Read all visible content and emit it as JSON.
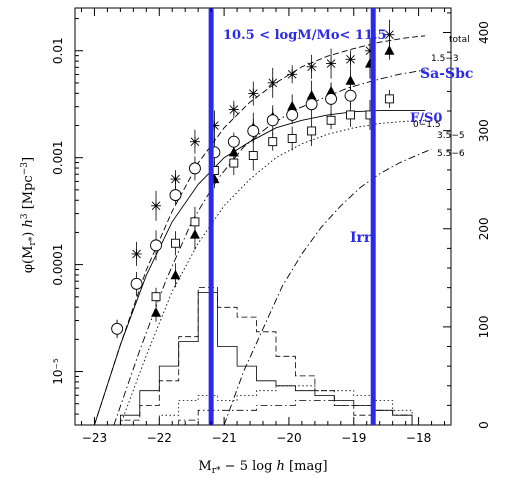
{
  "chart_data": {
    "type": "scatter",
    "xlabel": "M<sub>r*</sub> − 5 log h [mag]",
    "ylabel_left": "φ(M<sub>r*</sub>) h³ [Mpc⁻³]",
    "xlim": [
      -23.3,
      -17.5
    ],
    "ylim_left_log10": [
      -5.5,
      -1.6
    ],
    "ylim_right": [
      0,
      425
    ],
    "x_ticks": [
      "−23",
      "−22",
      "−21",
      "−20",
      "−19",
      "−18"
    ],
    "x_tick_values": [
      -23,
      -22,
      -21,
      -20,
      -19,
      -18
    ],
    "y_ticks_left": [
      "0.01",
      "0.001",
      "0.0001",
      "10⁻⁵"
    ],
    "y_tick_values_log10": [
      -2,
      -3,
      -4,
      -5
    ],
    "y_ticks_right": [
      "0",
      "100",
      "200",
      "300",
      "400"
    ],
    "y_tick_values_right": [
      0,
      100,
      200,
      300,
      400
    ],
    "legend": [
      "total",
      "1.5−3",
      "F/S0",
      "0−1.5",
      "3.5−5",
      "5.5−6"
    ],
    "annotations": {
      "mass_range": "10.5 < logM/Mo< 11.5",
      "sa_sbc": "Sa-Sbc",
      "irr": "Irr"
    },
    "vertical_lines_x": [
      -21.2,
      -18.7
    ],
    "series": [
      {
        "name": "total",
        "marker": "asterisk",
        "x": [
          -22.65,
          -22.35,
          -22.05,
          -21.75,
          -21.45,
          -21.15,
          -20.85,
          -20.55,
          -20.25,
          -19.95,
          -19.65,
          -19.35,
          -19.05,
          -18.75,
          -18.45
        ],
        "y_log10": [
          -4.6,
          -3.9,
          -3.45,
          -3.2,
          -2.85,
          -2.7,
          -2.55,
          -2.4,
          -2.3,
          -2.22,
          -2.15,
          -2.12,
          -2.08,
          -2.0,
          -1.85
        ]
      },
      {
        "name": "1.5−3",
        "marker": "triangle",
        "x": [
          -22.05,
          -21.75,
          -21.45,
          -21.15,
          -20.85,
          -20.55,
          -20.25,
          -19.95,
          -19.65,
          -19.35,
          -19.05,
          -18.75,
          -18.45
        ],
        "y_log10": [
          -4.45,
          -4.1,
          -3.72,
          -3.2,
          -2.95,
          -2.72,
          -2.62,
          -2.52,
          -2.42,
          -2.38,
          -2.28,
          -2.12,
          -2.0
        ]
      },
      {
        "name": "0−1.5",
        "marker": "circle",
        "x": [
          -22.65,
          -22.35,
          -22.05,
          -21.75,
          -21.45,
          -21.15,
          -20.85,
          -20.55,
          -20.25,
          -19.95,
          -19.65,
          -19.35,
          -19.05
        ],
        "y_log10": [
          -4.6,
          -4.18,
          -3.82,
          -3.35,
          -3.1,
          -2.95,
          -2.85,
          -2.75,
          -2.65,
          -2.6,
          -2.5,
          -2.45,
          -2.42
        ]
      },
      {
        "name": "F/S0",
        "marker": "square",
        "x": [
          -22.05,
          -21.75,
          -21.45,
          -21.15,
          -20.85,
          -20.55,
          -20.25,
          -19.95,
          -19.65,
          -19.35,
          -19.05,
          -18.75,
          -18.45
        ],
        "y_log10": [
          -4.3,
          -3.8,
          -3.6,
          -3.12,
          -3.05,
          -2.98,
          -2.85,
          -2.82,
          -2.75,
          -2.65,
          -2.6,
          -2.6,
          -2.45
        ]
      }
    ],
    "curves": [
      {
        "name": "total",
        "style": "dashed",
        "x": [
          -23.0,
          -22.6,
          -22.2,
          -21.8,
          -21.4,
          -21.0,
          -20.6,
          -20.2,
          -19.8,
          -19.4,
          -19.0,
          -18.6,
          -18.2,
          -17.9
        ],
        "y_log10": [
          -5.5,
          -4.75,
          -4.05,
          -3.5,
          -3.05,
          -2.72,
          -2.48,
          -2.3,
          -2.15,
          -2.05,
          -1.98,
          -1.92,
          -1.88,
          -1.86
        ]
      },
      {
        "name": "1.5−3",
        "style": "dashdot",
        "x": [
          -22.7,
          -22.3,
          -21.9,
          -21.5,
          -21.1,
          -20.7,
          -20.3,
          -19.9,
          -19.5,
          -19.1,
          -18.7,
          -18.3,
          -17.9
        ],
        "y_log10": [
          -5.5,
          -4.8,
          -4.15,
          -3.6,
          -3.2,
          -2.9,
          -2.7,
          -2.55,
          -2.45,
          -2.35,
          -2.28,
          -2.22,
          -2.18
        ]
      },
      {
        "name": "0−1.5",
        "style": "solid",
        "x": [
          -23.0,
          -22.6,
          -22.2,
          -21.8,
          -21.4,
          -21.0,
          -20.6,
          -20.2,
          -19.8,
          -19.4,
          -19.0,
          -18.6,
          -18.2,
          -17.9
        ],
        "y_log10": [
          -5.5,
          -4.75,
          -4.1,
          -3.6,
          -3.25,
          -3.0,
          -2.85,
          -2.72,
          -2.65,
          -2.6,
          -2.57,
          -2.56,
          -2.56,
          -2.56
        ]
      },
      {
        "name": "3.5−5",
        "style": "dotted",
        "x": [
          -22.6,
          -22.2,
          -21.8,
          -21.4,
          -21.0,
          -20.6,
          -20.2,
          -19.8,
          -19.4,
          -19.0,
          -18.6,
          -18.2,
          -17.9
        ],
        "y_log10": [
          -5.5,
          -4.85,
          -4.25,
          -3.8,
          -3.45,
          -3.2,
          -3.0,
          -2.87,
          -2.78,
          -2.72,
          -2.68,
          -2.66,
          -2.65
        ]
      },
      {
        "name": "5.5−6",
        "style": "dashdot",
        "x": [
          -21.0,
          -20.7,
          -20.4,
          -20.1,
          -19.8,
          -19.5,
          -19.2,
          -18.9,
          -18.6,
          -18.3,
          -18.0,
          -17.8
        ],
        "y_log10": [
          -5.5,
          -5.0,
          -4.6,
          -4.2,
          -3.9,
          -3.65,
          -3.45,
          -3.28,
          -3.15,
          -3.05,
          -2.97,
          -2.92
        ]
      }
    ],
    "histograms": [
      {
        "style": "dashed",
        "edges": [
          -22.6,
          -22.3,
          -22.0,
          -21.7,
          -21.4,
          -21.1,
          -20.8,
          -20.5,
          -20.2,
          -19.9,
          -19.6,
          -19.3,
          -19.0,
          -18.7
        ],
        "counts": [
          5,
          20,
          45,
          90,
          140,
          120,
          110,
          95,
          70,
          50,
          35,
          20,
          10
        ]
      },
      {
        "style": "solid",
        "edges": [
          -22.6,
          -22.3,
          -22.0,
          -21.7,
          -21.4,
          -21.1,
          -20.8,
          -20.5,
          -20.2,
          -19.9,
          -19.6,
          -19.3,
          -19.0,
          -18.7,
          -18.4,
          -18.1
        ],
        "counts": [
          10,
          35,
          60,
          85,
          135,
          80,
          60,
          45,
          40,
          35,
          30,
          25,
          20,
          15,
          10
        ]
      },
      {
        "style": "dotted",
        "edges": [
          -22.0,
          -21.7,
          -21.4,
          -21.1,
          -20.8,
          -20.5,
          -20.2,
          -19.9,
          -19.6,
          -19.3,
          -19.0,
          -18.7,
          -18.4,
          -18.1
        ],
        "counts": [
          10,
          25,
          30,
          25,
          30,
          35,
          40,
          40,
          35,
          35,
          30,
          25,
          15
        ]
      },
      {
        "style": "dashdot",
        "edges": [
          -21.7,
          -21.4,
          -21.1,
          -20.8,
          -20.5,
          -20.2,
          -19.9,
          -19.6,
          -19.3,
          -19.0,
          -18.7,
          -18.4,
          -18.1
        ],
        "counts": [
          5,
          15,
          15,
          15,
          20,
          20,
          25,
          25,
          20,
          20,
          15,
          10
        ]
      }
    ]
  }
}
